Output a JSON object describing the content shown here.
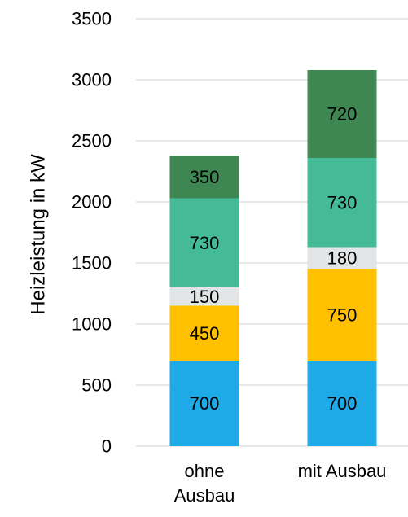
{
  "chart_data": {
    "type": "bar",
    "stacked": true,
    "title": "",
    "ylabel": "Heizleistung in kW",
    "xlabel": "",
    "ylim": [
      0,
      3500
    ],
    "yticks": [
      0,
      500,
      1000,
      1500,
      2000,
      2500,
      3000,
      3500
    ],
    "ytick_labels": [
      "0",
      "500",
      "1000",
      "1500",
      "2000",
      "2500",
      "3000",
      "3500"
    ],
    "grid": true,
    "legend": "none",
    "categories": [
      [
        "ohne",
        "Ausbau"
      ],
      [
        "mit Ausbau"
      ]
    ],
    "series": [
      {
        "values": [
          700,
          700
        ],
        "color": "#1EAAE6"
      },
      {
        "values": [
          450,
          750
        ],
        "color": "#FFC000"
      },
      {
        "values": [
          150,
          180
        ],
        "color": "#E2E4E6"
      },
      {
        "values": [
          730,
          730
        ],
        "color": "#44BB96"
      },
      {
        "values": [
          350,
          720
        ],
        "color": "#3E8753"
      }
    ],
    "data_labels": [
      [
        "700",
        "700"
      ],
      [
        "450",
        "750"
      ],
      [
        "150",
        "180"
      ],
      [
        "730",
        "730"
      ],
      [
        "350",
        "720"
      ]
    ]
  }
}
